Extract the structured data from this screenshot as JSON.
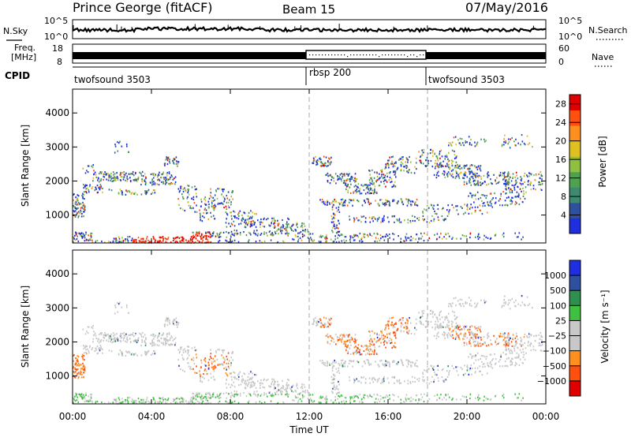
{
  "header": {
    "station": "Prince George (fitACF)",
    "beam": "Beam 15",
    "date": "07/May/2016"
  },
  "colors": {
    "power_scale": [
      "#1f2fe0",
      "#2f4f9f",
      "#3d8a70",
      "#4fa04f",
      "#8fc040",
      "#e0c020",
      "#ff9020",
      "#ff5010",
      "#e00000"
    ],
    "velocity_scale": [
      "#e00000",
      "#ff5010",
      "#ff9020",
      "#c8c8c8",
      "#c8c8c8",
      "#40c040",
      "#2f8f4f",
      "#2f4f9f",
      "#1f2fe0"
    ]
  },
  "chart_data": [
    {
      "type": "line",
      "name": "noise-panel",
      "left_label": "N.Sky",
      "right_label": "N.Search",
      "left_ticks": [
        "10^5",
        "10^0"
      ],
      "right_ticks": [
        "10^5",
        "10^0"
      ]
    },
    {
      "type": "line",
      "name": "frequency-panel",
      "left_label_line1": "Freq.",
      "left_label_line2": "[MHz]",
      "right_label": "Nave",
      "left_ticks": [
        "18",
        "8"
      ],
      "right_ticks": [
        "60",
        "0"
      ]
    },
    {
      "type": "table",
      "name": "cpid-panel",
      "label": "CPID",
      "segments": [
        {
          "start_hour": 0,
          "end_hour": 12,
          "label": "twofsound 3503"
        },
        {
          "start_hour": 12,
          "end_hour": 18,
          "label": "rbsp 200"
        },
        {
          "start_hour": 18,
          "end_hour": 24,
          "label": "twofsound 3503"
        }
      ]
    },
    {
      "type": "heatmap",
      "name": "power-panel",
      "ylabel": "Slant Range [km]",
      "yticks": [
        1000,
        2000,
        3000,
        4000
      ],
      "ylim": [
        180,
        4700
      ],
      "xlim": [
        0,
        24
      ],
      "colorbar_label": "Power [dB]",
      "colorbar_ticks": [
        4,
        8,
        12,
        16,
        20,
        24,
        28
      ],
      "colorbar_range": [
        0,
        30
      ]
    },
    {
      "type": "heatmap",
      "name": "velocity-panel",
      "ylabel": "Slant Range [km]",
      "yticks": [
        1000,
        2000,
        3000,
        4000
      ],
      "ylim": [
        180,
        4700
      ],
      "xlim": [
        0,
        24
      ],
      "colorbar_label": "Velocity [m s⁻¹]",
      "colorbar_ticks": [
        "1000",
        "500",
        "100",
        "25",
        "−25",
        "−100",
        "−500",
        "−1000"
      ]
    }
  ],
  "xaxis": {
    "label": "Time UT",
    "ticks": [
      "00:00",
      "04:00",
      "08:00",
      "12:00",
      "16:00",
      "20:00",
      "00:00"
    ]
  }
}
